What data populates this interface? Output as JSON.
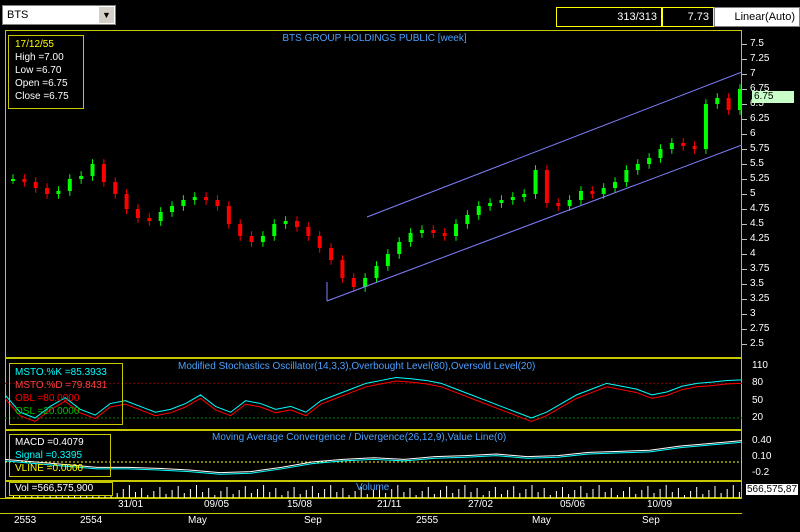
{
  "toolbar": {
    "symbol": "BTS",
    "count": "313/313",
    "last_price": "7.73",
    "scale_mode": "Linear(Auto)"
  },
  "main_chart": {
    "title": "BTS GROUP HOLDINGS PUBLIC [week]",
    "info": {
      "date": "17/12/55",
      "high": "High  =7.00",
      "low": "Low   =6.70",
      "open": "Open  =6.75",
      "close": "Close  =6.75"
    },
    "price_tag": "6.75",
    "y_ticks": [
      "7.5",
      "7.25",
      "7",
      "6.75",
      "6.5",
      "6.25",
      "6",
      "5.75",
      "5.5",
      "5.25",
      "5",
      "4.75",
      "4.5",
      "4.25",
      "4",
      "3.75",
      "3.5",
      "3.25",
      "3",
      "2.75",
      "2.5"
    ]
  },
  "stochastic": {
    "title": "Modified Stochastics Oscillator(14,3,3),Overbought Level(80),Oversold Level(20)",
    "k": "MSTO.%K    =85.3933",
    "d": "MSTO.%D    =79.8431",
    "obl": "OBL   =80.0000",
    "osl": "OSL   =20.0000",
    "y_ticks": [
      "110",
      "80",
      "50",
      "20"
    ]
  },
  "macd": {
    "title": "Moving Average Convergence / Divergence(26,12,9),Value Line(0)",
    "macd": "MACD    =0.4079",
    "signal": "Signal    =0.3395",
    "vline": "VLINE    =0.0000",
    "y_ticks": [
      "0.40",
      "0.10",
      "-0.2"
    ]
  },
  "volume": {
    "title": "Volume",
    "vol": "Vol    =566,575,900",
    "right_value": "566,575,87"
  },
  "x_axis": {
    "dates": [
      "31/01",
      "09/05",
      "15/08",
      "21/11",
      "27/02",
      "05/06",
      "10/09"
    ],
    "months": [
      "2553",
      "2554",
      "May",
      "Sep",
      "2555",
      "May",
      "Sep"
    ]
  },
  "colors": {
    "up": "#00ff00",
    "down": "#ff0000",
    "trend": "#8080ff",
    "k_line": "#00ffff",
    "d_line": "#ff0000",
    "panel_border": "#c8c800"
  }
}
